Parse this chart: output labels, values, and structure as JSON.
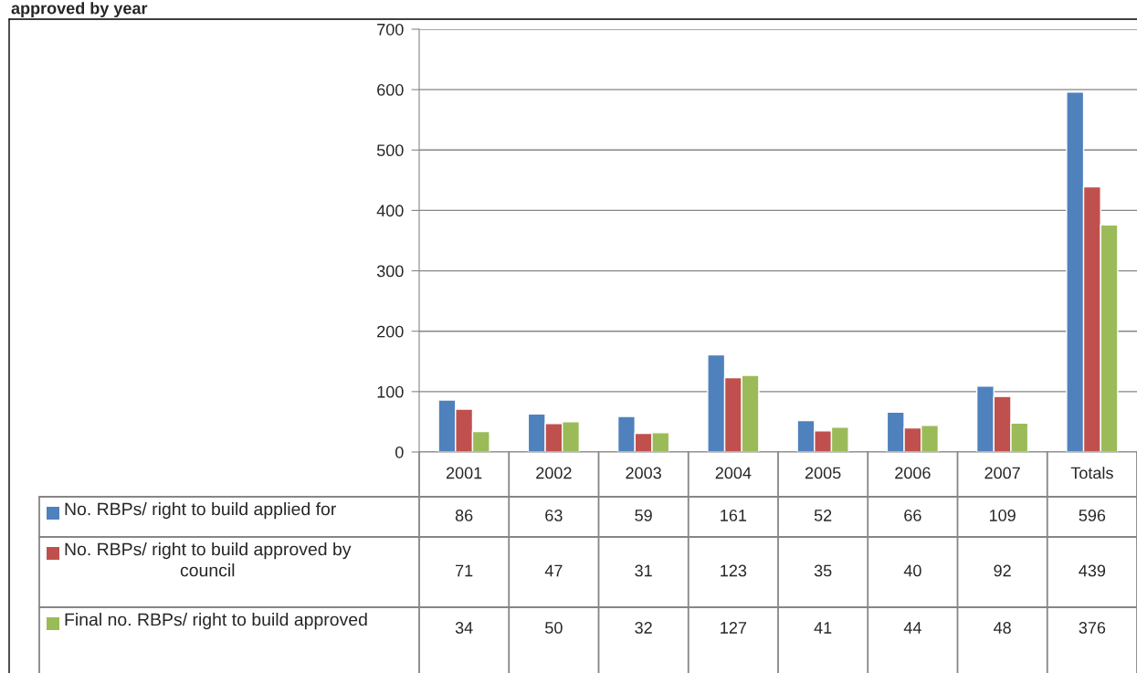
{
  "chart_data": {
    "type": "bar",
    "title": "approved by year",
    "categories": [
      "2001",
      "2002",
      "2003",
      "2004",
      "2005",
      "2006",
      "2007",
      "Totals"
    ],
    "series": [
      {
        "name": "No. RBPs/ right to build applied for",
        "color": "#4f81bd",
        "values": [
          86,
          63,
          59,
          161,
          52,
          66,
          109,
          596
        ]
      },
      {
        "name": "No. RBPs/ right to build approved by council",
        "color": "#c0504d",
        "values": [
          71,
          47,
          31,
          123,
          35,
          40,
          92,
          439
        ]
      },
      {
        "name": "Final no. RBPs/ right to build approved",
        "color": "#9bbb59",
        "values": [
          34,
          50,
          32,
          127,
          41,
          44,
          48,
          376
        ]
      }
    ],
    "ylim": [
      0,
      700
    ],
    "yticks": [
      0,
      100,
      200,
      300,
      400,
      500,
      600,
      700
    ],
    "grid": "y",
    "legend": "bottom",
    "data_labels": true
  }
}
